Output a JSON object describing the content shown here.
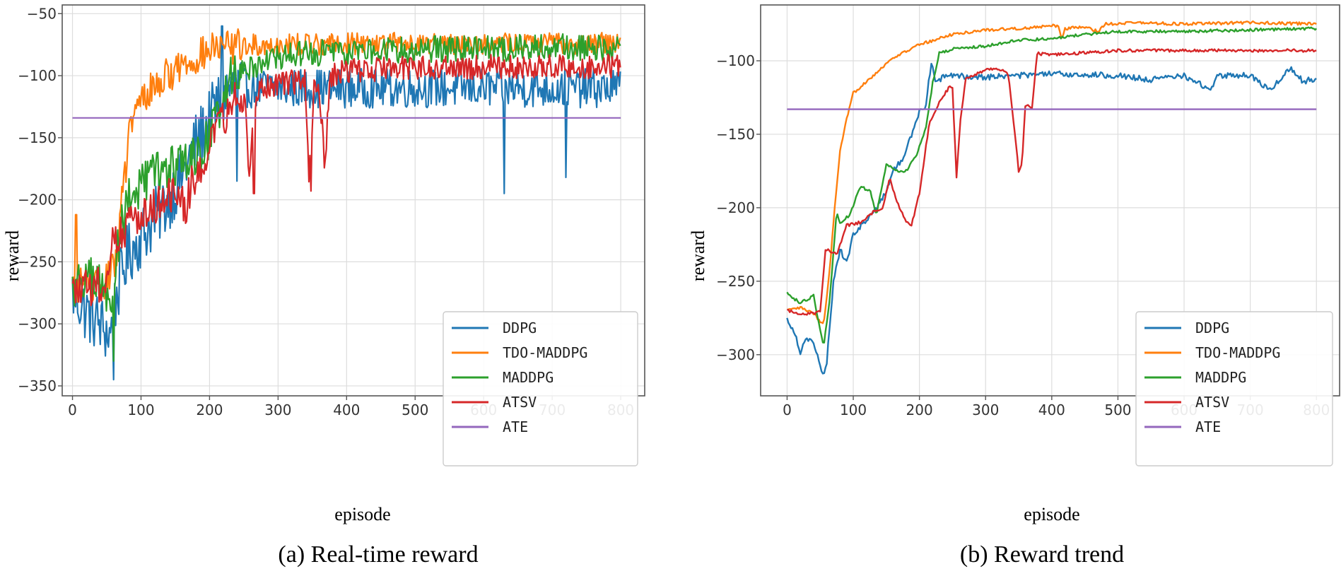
{
  "chart_data": [
    {
      "id": "a",
      "type": "line",
      "caption": "(a) Real-time reward",
      "xlabel": "episode",
      "ylabel": "reward",
      "xlim": [
        -15,
        835
      ],
      "ylim": [
        -358,
        -43
      ],
      "xticks": [
        0,
        100,
        200,
        300,
        400,
        500,
        600,
        700,
        800
      ],
      "yticks": [
        -350,
        -300,
        -250,
        -200,
        -150,
        -100,
        -50
      ],
      "grid": true,
      "legend_position": "lower-right",
      "series": [
        {
          "name": "DDPG",
          "color": "#1f77b4",
          "noise": 16,
          "points": [
            [
              0,
              -275
            ],
            [
              20,
              -290
            ],
            [
              40,
              -300
            ],
            [
              55,
              -310
            ],
            [
              65,
              -275
            ],
            [
              80,
              -245
            ],
            [
              100,
              -230
            ],
            [
              120,
              -215
            ],
            [
              140,
              -200
            ],
            [
              160,
              -180
            ],
            [
              180,
              -155
            ],
            [
              200,
              -135
            ],
            [
              215,
              -120
            ],
            [
              230,
              -110
            ],
            [
              260,
              -110
            ],
            [
              300,
              -110
            ],
            [
              400,
              -110
            ],
            [
              500,
              -110
            ],
            [
              600,
              -110
            ],
            [
              700,
              -110
            ],
            [
              800,
              -110
            ]
          ],
          "spikes": [
            [
              218,
              -60
            ],
            [
              240,
              -185
            ],
            [
              630,
              -195
            ],
            [
              720,
              -182
            ],
            [
              60,
              -345
            ]
          ]
        },
        {
          "name": "TDO-MADDPG",
          "color": "#ff7f0e",
          "noise": 9,
          "points": [
            [
              0,
              -270
            ],
            [
              20,
              -265
            ],
            [
              40,
              -272
            ],
            [
              55,
              -262
            ],
            [
              65,
              -240
            ],
            [
              75,
              -185
            ],
            [
              85,
              -140
            ],
            [
              100,
              -120
            ],
            [
              120,
              -108
            ],
            [
              150,
              -95
            ],
            [
              180,
              -85
            ],
            [
              210,
              -78
            ],
            [
              240,
              -76
            ],
            [
              300,
              -75
            ],
            [
              400,
              -74
            ],
            [
              500,
              -74
            ],
            [
              600,
              -74
            ],
            [
              700,
              -74
            ],
            [
              800,
              -74
            ]
          ],
          "spikes": [
            [
              5,
              -212
            ],
            [
              220,
              -75
            ]
          ]
        },
        {
          "name": "MADDPG",
          "color": "#2ca02c",
          "noise": 11,
          "points": [
            [
              0,
              -270
            ],
            [
              20,
              -262
            ],
            [
              40,
              -268
            ],
            [
              55,
              -290
            ],
            [
              65,
              -240
            ],
            [
              80,
              -200
            ],
            [
              100,
              -190
            ],
            [
              120,
              -178
            ],
            [
              140,
              -175
            ],
            [
              160,
              -170
            ],
            [
              180,
              -165
            ],
            [
              200,
              -150
            ],
            [
              215,
              -125
            ],
            [
              230,
              -100
            ],
            [
              260,
              -92
            ],
            [
              300,
              -85
            ],
            [
              400,
              -80
            ],
            [
              500,
              -79
            ],
            [
              600,
              -78
            ],
            [
              700,
              -77
            ],
            [
              800,
              -78
            ]
          ],
          "spikes": [
            [
              60,
              -330
            ]
          ]
        },
        {
          "name": "ATSV",
          "color": "#d62728",
          "noise": 10,
          "points": [
            [
              0,
              -275
            ],
            [
              20,
              -272
            ],
            [
              40,
              -270
            ],
            [
              50,
              -265
            ],
            [
              60,
              -228
            ],
            [
              80,
              -222
            ],
            [
              100,
              -210
            ],
            [
              130,
              -200
            ],
            [
              150,
              -198
            ],
            [
              165,
              -205
            ],
            [
              180,
              -178
            ],
            [
              200,
              -160
            ],
            [
              220,
              -135
            ],
            [
              240,
              -118
            ],
            [
              252,
              -118
            ],
            [
              258,
              -180
            ],
            [
              264,
              -120
            ],
            [
              280,
              -110
            ],
            [
              300,
              -106
            ],
            [
              340,
              -104
            ],
            [
              345,
              -190
            ],
            [
              352,
              -110
            ],
            [
              360,
              -108
            ],
            [
              368,
              -172
            ],
            [
              376,
              -100
            ],
            [
              400,
              -96
            ],
            [
              500,
              -93
            ],
            [
              600,
              -93
            ],
            [
              700,
              -93
            ],
            [
              800,
              -92
            ]
          ],
          "spikes": [
            [
              265,
              -195
            ],
            [
              348,
              -193
            ]
          ]
        },
        {
          "name": "ATE",
          "color": "#9467bd",
          "noise": 0,
          "points": [
            [
              0,
              -134
            ],
            [
              800,
              -134
            ]
          ],
          "spikes": []
        }
      ]
    },
    {
      "id": "b",
      "type": "line",
      "caption": "(b) Reward trend",
      "xlabel": "episode",
      "ylabel": "reward",
      "xlim": [
        -40,
        835
      ],
      "ylim": [
        -328,
        -62
      ],
      "xticks": [
        0,
        100,
        200,
        300,
        400,
        500,
        600,
        700,
        800
      ],
      "yticks": [
        -300,
        -250,
        -200,
        -150,
        -100
      ],
      "grid": true,
      "legend_position": "lower-right",
      "series": [
        {
          "name": "DDPG",
          "color": "#1f77b4",
          "noise": 2,
          "points": [
            [
              0,
              -276
            ],
            [
              10,
              -283
            ],
            [
              20,
              -298
            ],
            [
              30,
              -288
            ],
            [
              40,
              -292
            ],
            [
              50,
              -308
            ],
            [
              55,
              -316
            ],
            [
              60,
              -305
            ],
            [
              70,
              -250
            ],
            [
              80,
              -228
            ],
            [
              90,
              -238
            ],
            [
              100,
              -218
            ],
            [
              120,
              -208
            ],
            [
              140,
              -198
            ],
            [
              150,
              -188
            ],
            [
              160,
              -175
            ],
            [
              175,
              -167
            ],
            [
              190,
              -148
            ],
            [
              200,
              -135
            ],
            [
              210,
              -130
            ],
            [
              218,
              -100
            ],
            [
              225,
              -115
            ],
            [
              240,
              -110
            ],
            [
              300,
              -111
            ],
            [
              400,
              -109
            ],
            [
              500,
              -110
            ],
            [
              550,
              -113
            ],
            [
              600,
              -110
            ],
            [
              640,
              -120
            ],
            [
              650,
              -110
            ],
            [
              700,
              -110
            ],
            [
              730,
              -120
            ],
            [
              760,
              -105
            ],
            [
              780,
              -114
            ],
            [
              800,
              -112
            ]
          ]
        },
        {
          "name": "TDO-MADDPG",
          "color": "#ff7f0e",
          "noise": 1,
          "points": [
            [
              0,
              -270
            ],
            [
              20,
              -268
            ],
            [
              40,
              -272
            ],
            [
              55,
              -280
            ],
            [
              65,
              -240
            ],
            [
              70,
              -210
            ],
            [
              80,
              -162
            ],
            [
              90,
              -140
            ],
            [
              100,
              -122
            ],
            [
              130,
              -110
            ],
            [
              160,
              -98
            ],
            [
              200,
              -89
            ],
            [
              250,
              -82
            ],
            [
              300,
              -79
            ],
            [
              350,
              -78
            ],
            [
              410,
              -76
            ],
            [
              415,
              -85
            ],
            [
              420,
              -78
            ],
            [
              450,
              -77
            ],
            [
              470,
              -80
            ],
            [
              480,
              -75
            ],
            [
              520,
              -74
            ],
            [
              600,
              -75
            ],
            [
              700,
              -74
            ],
            [
              800,
              -75
            ]
          ]
        },
        {
          "name": "MADDPG",
          "color": "#2ca02c",
          "noise": 1,
          "points": [
            [
              0,
              -258
            ],
            [
              20,
              -265
            ],
            [
              40,
              -260
            ],
            [
              55,
              -295
            ],
            [
              65,
              -260
            ],
            [
              75,
              -202
            ],
            [
              80,
              -210
            ],
            [
              95,
              -205
            ],
            [
              110,
              -186
            ],
            [
              125,
              -188
            ],
            [
              135,
              -205
            ],
            [
              150,
              -170
            ],
            [
              165,
              -175
            ],
            [
              180,
              -175
            ],
            [
              195,
              -165
            ],
            [
              210,
              -145
            ],
            [
              220,
              -115
            ],
            [
              230,
              -95
            ],
            [
              250,
              -92
            ],
            [
              300,
              -90
            ],
            [
              350,
              -86
            ],
            [
              400,
              -85
            ],
            [
              450,
              -82
            ],
            [
              500,
              -80
            ],
            [
              600,
              -80
            ],
            [
              700,
              -79
            ],
            [
              800,
              -78
            ]
          ]
        },
        {
          "name": "ATSV",
          "color": "#d62728",
          "noise": 1,
          "points": [
            [
              0,
              -270
            ],
            [
              20,
              -272
            ],
            [
              40,
              -272
            ],
            [
              50,
              -270
            ],
            [
              58,
              -228
            ],
            [
              75,
              -232
            ],
            [
              90,
              -212
            ],
            [
              110,
              -210
            ],
            [
              130,
              -203
            ],
            [
              145,
              -200
            ],
            [
              155,
              -180
            ],
            [
              165,
              -195
            ],
            [
              180,
              -210
            ],
            [
              188,
              -212
            ],
            [
              200,
              -190
            ],
            [
              215,
              -142
            ],
            [
              230,
              -128
            ],
            [
              245,
              -118
            ],
            [
              250,
              -118
            ],
            [
              256,
              -180
            ],
            [
              262,
              -140
            ],
            [
              270,
              -112
            ],
            [
              300,
              -106
            ],
            [
              320,
              -105
            ],
            [
              335,
              -110
            ],
            [
              350,
              -175
            ],
            [
              355,
              -170
            ],
            [
              360,
              -130
            ],
            [
              370,
              -132
            ],
            [
              378,
              -95
            ],
            [
              400,
              -96
            ],
            [
              500,
              -93
            ],
            [
              600,
              -93
            ],
            [
              700,
              -93
            ],
            [
              800,
              -93
            ]
          ]
        },
        {
          "name": "ATE",
          "color": "#9467bd",
          "noise": 0,
          "points": [
            [
              0,
              -133
            ],
            [
              800,
              -133
            ]
          ]
        }
      ]
    }
  ]
}
